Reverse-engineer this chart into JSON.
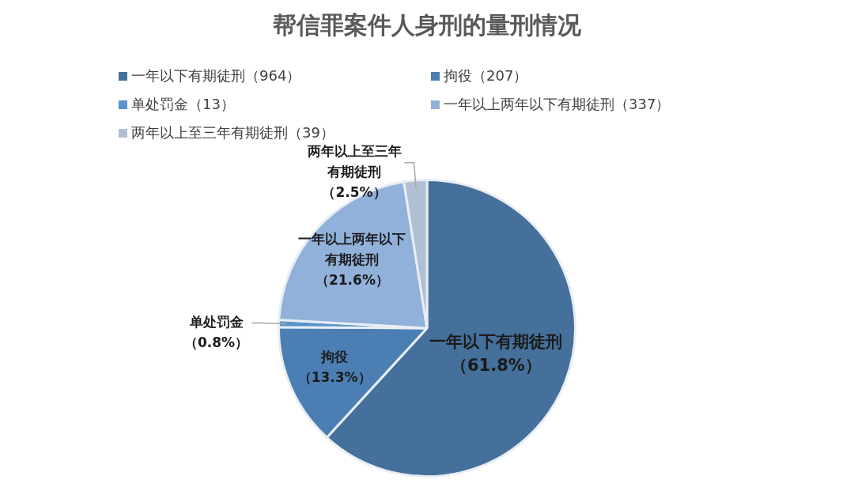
{
  "chart_data": {
    "type": "pie",
    "title": "帮信罪案件人身刑的量刑情况",
    "categories": [
      "一年以下有期徒刑（964）",
      "拘役（207）",
      "单处罚金（13）",
      "一年以上两年以下有期徒刑（337）",
      "两年以上至三年有期徒刑（39）"
    ],
    "values": [
      61.8,
      13.3,
      0.8,
      21.6,
      2.5
    ],
    "colors": [
      "#44709b",
      "#4b7fb4",
      "#5a92cc",
      "#91b1da",
      "#afc0d5"
    ],
    "value_labels": [
      "一年以下有期徒刑（61.8%）",
      "拘役（13.3%）",
      "单处罚金（0.8%）",
      "一年以上两年以下有期徒刑（21.6%）",
      "两年以上至三年有期徒刑（2.5%）"
    ],
    "legend": "top"
  }
}
